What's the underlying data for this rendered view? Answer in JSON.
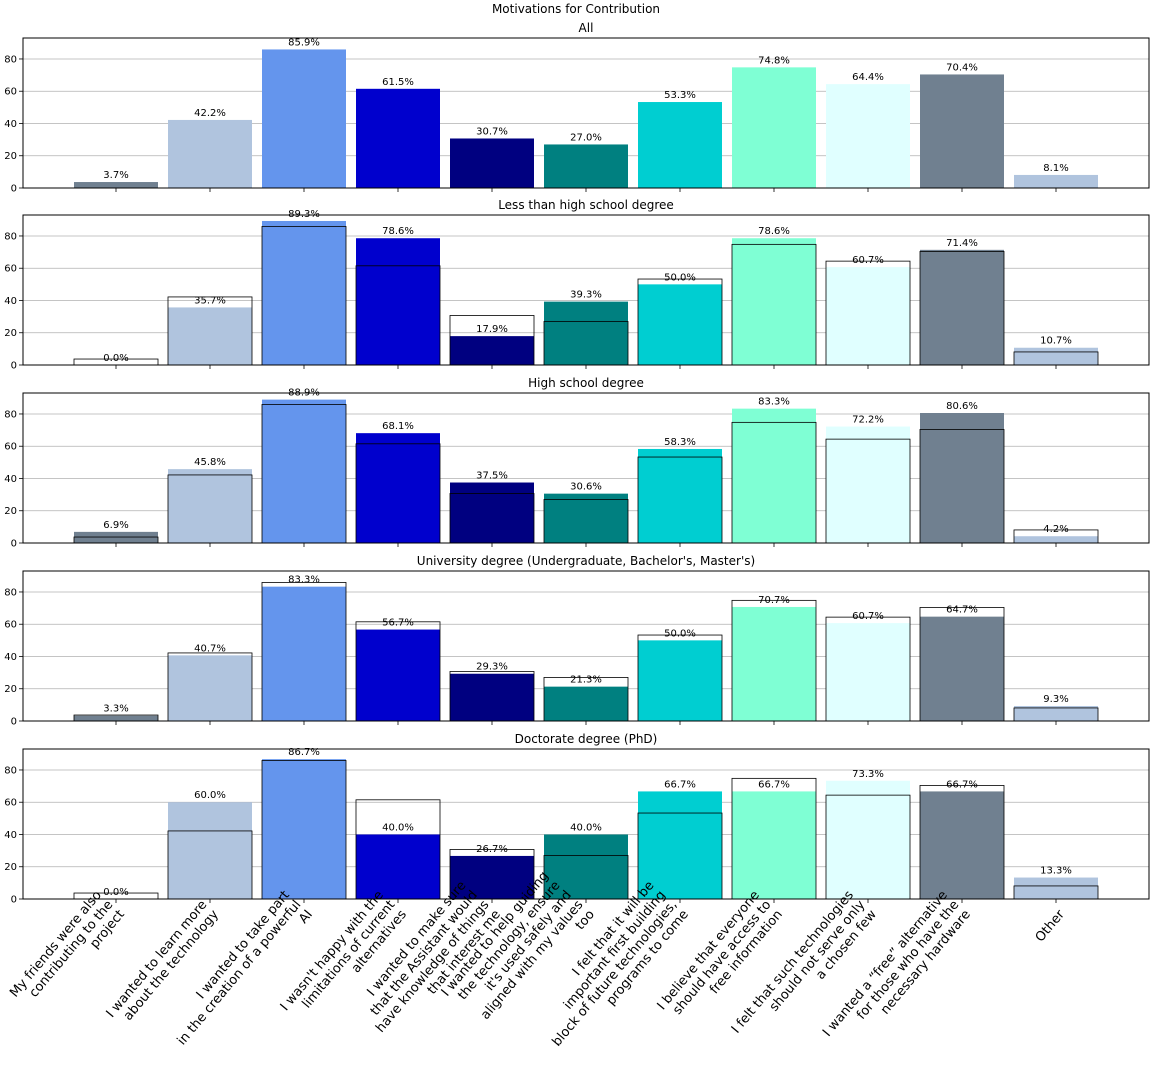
{
  "chart_data": {
    "type": "bar",
    "title": "Motivations for Contribution",
    "ylim": [
      0,
      93
    ],
    "yticks": [
      0,
      20,
      40,
      60,
      80
    ],
    "grid": "horizontal",
    "legend": "none",
    "categories": [
      [
        "My friends were also",
        "contributing to the",
        "project"
      ],
      [
        "I wanted to learn more",
        "about the technology"
      ],
      [
        "I wanted to take part",
        "in the creation of a powerful",
        "AI"
      ],
      [
        "I wasn't happy with the",
        "limitations of current",
        "alternatives"
      ],
      [
        "I wanted to make sure",
        "that the Assistant would",
        "have knowledge of things",
        "that interest me"
      ],
      [
        "I wanted to help guiding",
        "the technology, ensure",
        "it's used safely and",
        "aligned with my values",
        "too"
      ],
      [
        "I felt that it will be",
        "important first building",
        "block of future technologies,",
        "programs to come"
      ],
      [
        "I believe that everyone",
        "should have access to",
        "free information"
      ],
      [
        "I felt that such technologies",
        "should not serve only",
        "a chosen few"
      ],
      [
        "I wanted a “free” alternative",
        "for those who have the",
        "necessary hardware"
      ],
      [
        "Other"
      ]
    ],
    "colors": [
      "#708090",
      "#b0c4de",
      "#6495ed",
      "#0000cd",
      "#000080",
      "#008080",
      "#00ced1",
      "#7fffd4",
      "#e0ffff",
      "#708090",
      "#b0c4de"
    ],
    "reference_series": "All",
    "subplots": [
      {
        "title": "All",
        "values": [
          3.7,
          42.2,
          85.9,
          61.5,
          30.7,
          27.0,
          53.3,
          74.8,
          64.4,
          70.4,
          8.1
        ],
        "labels": [
          "3.7%",
          "42.2%",
          "85.9%",
          "61.5%",
          "30.7%",
          "27.0%",
          "53.3%",
          "74.8%",
          "64.4%",
          "70.4%",
          "8.1%"
        ]
      },
      {
        "title": "Less than high school degree",
        "values": [
          0.0,
          35.7,
          89.3,
          78.6,
          17.9,
          39.3,
          50.0,
          78.6,
          60.7,
          71.4,
          10.7
        ],
        "labels": [
          "0.0%",
          "35.7%",
          "89.3%",
          "78.6%",
          "17.9%",
          "39.3%",
          "50.0%",
          "78.6%",
          "60.7%",
          "71.4%",
          "10.7%"
        ]
      },
      {
        "title": "High school degree",
        "values": [
          6.9,
          45.8,
          88.9,
          68.1,
          37.5,
          30.6,
          58.3,
          83.3,
          72.2,
          80.6,
          4.2
        ],
        "labels": [
          "6.9%",
          "45.8%",
          "88.9%",
          "68.1%",
          "37.5%",
          "30.6%",
          "58.3%",
          "83.3%",
          "72.2%",
          "80.6%",
          "4.2%"
        ]
      },
      {
        "title": "University degree (Undergraduate, Bachelor's, Master's)",
        "values": [
          3.3,
          40.7,
          83.3,
          56.7,
          29.3,
          21.3,
          50.0,
          70.7,
          60.7,
          64.7,
          9.3
        ],
        "labels": [
          "3.3%",
          "40.7%",
          "83.3%",
          "56.7%",
          "29.3%",
          "21.3%",
          "50.0%",
          "70.7%",
          "60.7%",
          "64.7%",
          "9.3%"
        ]
      },
      {
        "title": "Doctorate degree (PhD)",
        "values": [
          0.0,
          60.0,
          86.7,
          40.0,
          26.7,
          40.0,
          66.7,
          66.7,
          73.3,
          66.7,
          13.3
        ],
        "labels": [
          "0.0%",
          "60.0%",
          "86.7%",
          "40.0%",
          "26.7%",
          "40.0%",
          "66.7%",
          "66.7%",
          "73.3%",
          "66.7%",
          "13.3%"
        ]
      }
    ]
  }
}
